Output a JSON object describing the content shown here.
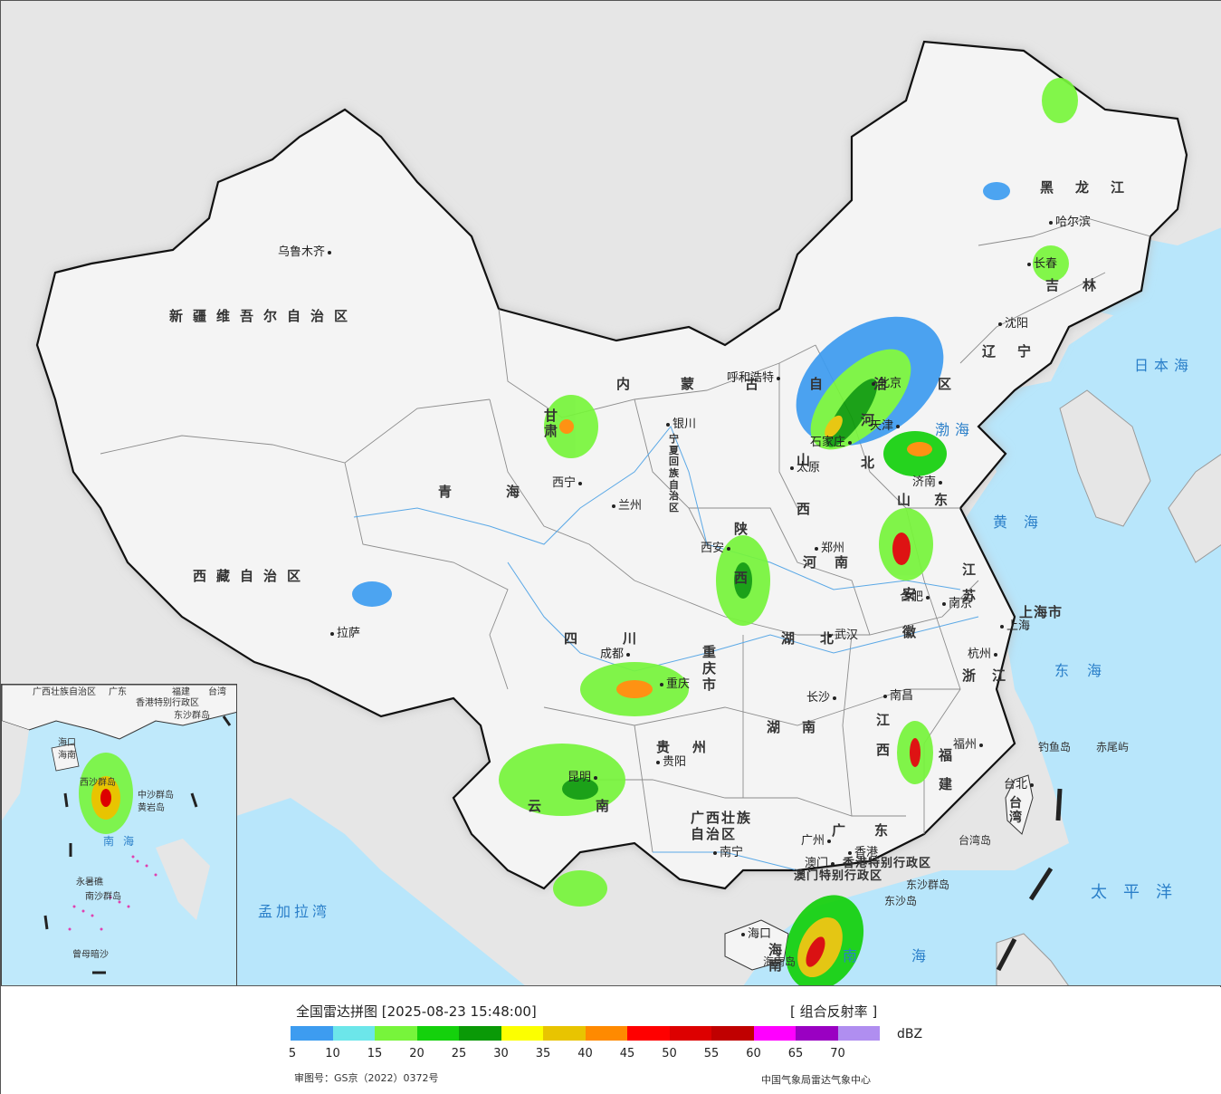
{
  "map": {
    "provinces": [
      {
        "id": "xinjiang",
        "label": "新疆维吾尔自治区"
      },
      {
        "id": "xizang",
        "label": "西藏自治区"
      },
      {
        "id": "qinghai",
        "label": "青海"
      },
      {
        "id": "gansu",
        "label": "甘肃"
      },
      {
        "id": "neimenggu",
        "label": "内蒙古自治区"
      },
      {
        "id": "ningxia",
        "label": "宁夏回族自治区"
      },
      {
        "id": "sichuan",
        "label": "四川"
      },
      {
        "id": "yunnan",
        "label": "云南"
      },
      {
        "id": "guizhou",
        "label": "贵州"
      },
      {
        "id": "chongqing",
        "label": "重庆市"
      },
      {
        "id": "shaanxi",
        "label": "陕西"
      },
      {
        "id": "shanxi",
        "label": "山西"
      },
      {
        "id": "hebei",
        "label": "河北"
      },
      {
        "id": "henan",
        "label": "河南"
      },
      {
        "id": "hubei",
        "label": "湖北"
      },
      {
        "id": "hunan",
        "label": "湖南"
      },
      {
        "id": "guangxi",
        "label": "广西壮族自治区"
      },
      {
        "id": "guangdong",
        "label": "广东"
      },
      {
        "id": "hainan",
        "label": "海南"
      },
      {
        "id": "jiangxi",
        "label": "江西"
      },
      {
        "id": "fujian",
        "label": "福建"
      },
      {
        "id": "zhejiang",
        "label": "浙江"
      },
      {
        "id": "anhui",
        "label": "安徽"
      },
      {
        "id": "jiangsu",
        "label": "江苏"
      },
      {
        "id": "shandong",
        "label": "山东"
      },
      {
        "id": "shanghai",
        "label": "上海市"
      },
      {
        "id": "liaoning",
        "label": "辽宁"
      },
      {
        "id": "jilin",
        "label": "吉林"
      },
      {
        "id": "heilongjiang",
        "label": "黑龙江"
      },
      {
        "id": "taiwan",
        "label": "台湾"
      },
      {
        "id": "hk",
        "label": "香港特别行政区"
      },
      {
        "id": "macau",
        "label": "澳门特别行政区"
      }
    ],
    "cities": [
      {
        "id": "urumqi",
        "label": "乌鲁木齐"
      },
      {
        "id": "lhasa",
        "label": "拉萨"
      },
      {
        "id": "xining",
        "label": "西宁"
      },
      {
        "id": "lanzhou",
        "label": "兰州"
      },
      {
        "id": "yinchuan",
        "label": "银川"
      },
      {
        "id": "hohhot",
        "label": "呼和浩特"
      },
      {
        "id": "beijing",
        "label": "北京"
      },
      {
        "id": "tianjin",
        "label": "天津"
      },
      {
        "id": "shijiazhuang",
        "label": "石家庄"
      },
      {
        "id": "taiyuan",
        "label": "太原"
      },
      {
        "id": "jinan",
        "label": "济南"
      },
      {
        "id": "zhengzhou",
        "label": "郑州"
      },
      {
        "id": "xian",
        "label": "西安"
      },
      {
        "id": "hefei",
        "label": "合肥"
      },
      {
        "id": "nanjing",
        "label": "南京"
      },
      {
        "id": "shanghai",
        "label": "上海"
      },
      {
        "id": "hangzhou",
        "label": "杭州"
      },
      {
        "id": "wuhan",
        "label": "武汉"
      },
      {
        "id": "chengdu",
        "label": "成都"
      },
      {
        "id": "chongqing",
        "label": "重庆"
      },
      {
        "id": "changsha",
        "label": "长沙"
      },
      {
        "id": "nanchang",
        "label": "南昌"
      },
      {
        "id": "fuzhou",
        "label": "福州"
      },
      {
        "id": "guiyang",
        "label": "贵阳"
      },
      {
        "id": "kunming",
        "label": "昆明"
      },
      {
        "id": "nanning",
        "label": "南宁"
      },
      {
        "id": "guangzhou",
        "label": "广州"
      },
      {
        "id": "hongkong",
        "label": "香港"
      },
      {
        "id": "macao",
        "label": "澳门"
      },
      {
        "id": "haikou",
        "label": "海口"
      },
      {
        "id": "taibei",
        "label": "台北"
      },
      {
        "id": "shenyang",
        "label": "沈阳"
      },
      {
        "id": "changchun",
        "label": "长春"
      },
      {
        "id": "harbin",
        "label": "哈尔滨"
      }
    ],
    "seas": [
      {
        "id": "bohai",
        "label": "渤海"
      },
      {
        "id": "huanghai",
        "label": "黄海"
      },
      {
        "id": "donghai",
        "label": "东海"
      },
      {
        "id": "nanhai",
        "label": "南海"
      },
      {
        "id": "taipingyang",
        "label": "太平洋"
      },
      {
        "id": "ribenhai",
        "label": "日本海"
      },
      {
        "id": "mengjiala",
        "label": "孟加拉湾"
      }
    ],
    "islands": [
      {
        "id": "diaoyu",
        "label": "钓鱼岛"
      },
      {
        "id": "chiwei",
        "label": "赤尾屿"
      },
      {
        "id": "dongsha_qundao",
        "label": "东沙群岛"
      },
      {
        "id": "dongsha_dao",
        "label": "东沙岛"
      },
      {
        "id": "taiwan_dao",
        "label": "台湾岛"
      },
      {
        "id": "hainan_dao",
        "label": "海南岛"
      }
    ],
    "inset": {
      "labels": [
        {
          "id": "i_guangxi",
          "label": "广西壮族自治区"
        },
        {
          "id": "i_guangdong",
          "label": "广东"
        },
        {
          "id": "i_fujian",
          "label": "福建"
        },
        {
          "id": "i_taiwan",
          "label": "台湾"
        },
        {
          "id": "i_hk",
          "label": "香港特别行政区"
        },
        {
          "id": "i_dongsha",
          "label": "东沙群岛"
        },
        {
          "id": "i_haikou",
          "label": "海口"
        },
        {
          "id": "i_hainan",
          "label": "海南"
        },
        {
          "id": "i_xisha",
          "label": "西沙群岛"
        },
        {
          "id": "i_zhongsha",
          "label": "中沙群岛"
        },
        {
          "id": "i_huangyan",
          "label": "黄岩岛"
        },
        {
          "id": "i_yongshu",
          "label": "永暑礁"
        },
        {
          "id": "i_nansha",
          "label": "南沙群岛"
        },
        {
          "id": "i_zengmu",
          "label": "曾母暗沙"
        }
      ],
      "sea_label": "南海"
    }
  },
  "legend": {
    "title": "全国雷达拼图 [2025-08-23 15:48:00]",
    "product": "[ 组合反射率 ]",
    "unit": "dBZ",
    "colors": [
      "#3d9cf0",
      "#6ce6ea",
      "#77f53b",
      "#14d10c",
      "#0a9a07",
      "#fcff00",
      "#e8c401",
      "#ff8a00",
      "#ff0000",
      "#dd0000",
      "#c00000",
      "#ff00ff",
      "#9a00c2",
      "#b08ef0"
    ],
    "ticks": [
      "5",
      "10",
      "15",
      "20",
      "25",
      "30",
      "35",
      "40",
      "45",
      "50",
      "55",
      "60",
      "65",
      "70"
    ],
    "review_no": "审图号：GS京（2022）0372号",
    "organization": "中国气象局雷达气象中心"
  }
}
